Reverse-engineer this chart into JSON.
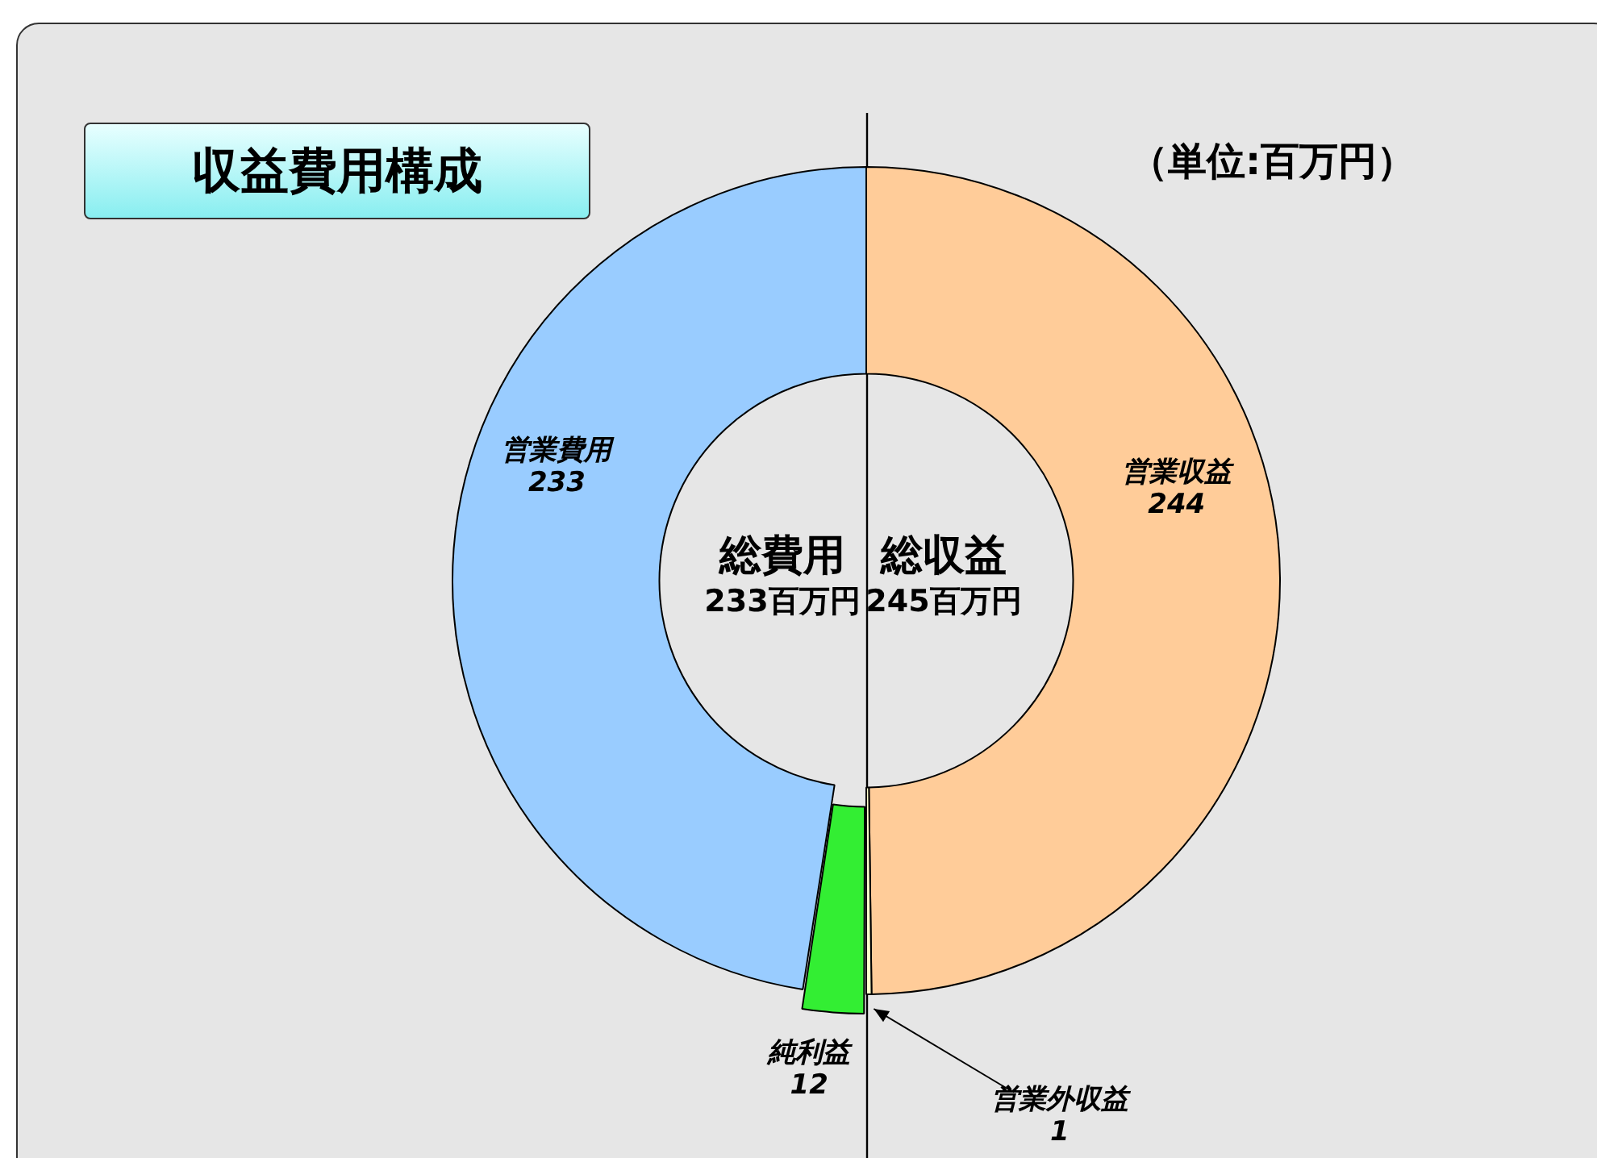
{
  "chart_data": {
    "type": "donut",
    "title": "収益費用構成",
    "subtitle": "（単位:百万円）",
    "categories": [
      "営業収益",
      "営業外収益",
      "純利益",
      "営業費用"
    ],
    "values": [
      244,
      1,
      12,
      233
    ],
    "colors": [
      "#ffcc99",
      "#ffffcc",
      "#33ee33",
      "#99ccff"
    ],
    "data_labels": true,
    "legend": false,
    "annotations": [
      "総費用",
      "233百万円",
      "総収益",
      "245百万円"
    ]
  }
}
